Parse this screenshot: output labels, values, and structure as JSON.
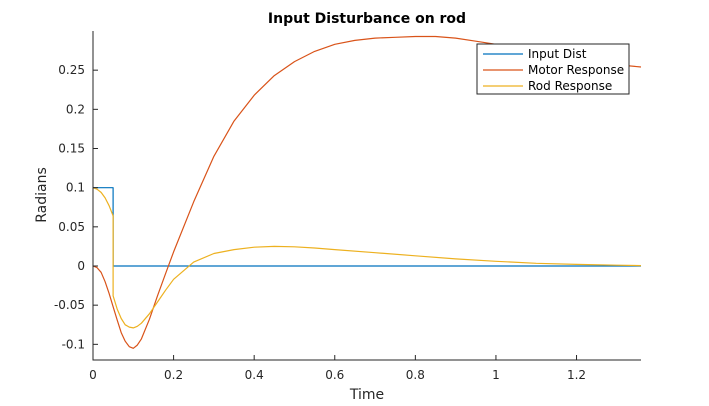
{
  "chart_data": {
    "type": "line",
    "title": "Input Disturbance on rod",
    "xlabel": "Time",
    "ylabel": "Radians",
    "xlim": [
      0,
      1.36
    ],
    "ylim": [
      -0.12,
      0.3
    ],
    "xticks": [
      0,
      0.2,
      0.4,
      0.6,
      0.8,
      1,
      1.2
    ],
    "xtick_labels": [
      "0",
      "0.2",
      "0.4",
      "0.6",
      "0.8",
      "1",
      "1.2"
    ],
    "yticks": [
      -0.1,
      -0.05,
      0,
      0.05,
      0.1,
      0.15,
      0.2,
      0.25
    ],
    "ytick_labels": [
      "-0.1",
      "-0.05",
      "0",
      "0.05",
      "0.1",
      "0.15",
      "0.2",
      "0.25"
    ],
    "grid": false,
    "legend_position": "top-right",
    "series": [
      {
        "name": "Input Dist",
        "color": "#0072bd",
        "points": [
          [
            0,
            0.1
          ],
          [
            0.05,
            0.1
          ],
          [
            0.05,
            0
          ],
          [
            1.36,
            0
          ]
        ]
      },
      {
        "name": "Motor Response",
        "color": "#d95319",
        "points": [
          [
            0,
            0
          ],
          [
            0.01,
            -0.002
          ],
          [
            0.02,
            -0.008
          ],
          [
            0.03,
            -0.02
          ],
          [
            0.04,
            -0.035
          ],
          [
            0.05,
            -0.052
          ],
          [
            0.06,
            -0.069
          ],
          [
            0.07,
            -0.085
          ],
          [
            0.08,
            -0.096
          ],
          [
            0.09,
            -0.103
          ],
          [
            0.1,
            -0.105
          ],
          [
            0.11,
            -0.101
          ],
          [
            0.12,
            -0.093
          ],
          [
            0.14,
            -0.068
          ],
          [
            0.16,
            -0.038
          ],
          [
            0.18,
            -0.01
          ],
          [
            0.2,
            0.018
          ],
          [
            0.25,
            0.082
          ],
          [
            0.3,
            0.14
          ],
          [
            0.35,
            0.185
          ],
          [
            0.4,
            0.218
          ],
          [
            0.45,
            0.243
          ],
          [
            0.5,
            0.261
          ],
          [
            0.55,
            0.274
          ],
          [
            0.6,
            0.283
          ],
          [
            0.65,
            0.288
          ],
          [
            0.7,
            0.291
          ],
          [
            0.75,
            0.292
          ],
          [
            0.8,
            0.293
          ],
          [
            0.85,
            0.293
          ],
          [
            0.9,
            0.291
          ],
          [
            0.95,
            0.287
          ],
          [
            1.0,
            0.283
          ],
          [
            1.05,
            0.279
          ],
          [
            1.1,
            0.274
          ],
          [
            1.15,
            0.269
          ],
          [
            1.2,
            0.264
          ],
          [
            1.25,
            0.26
          ],
          [
            1.3,
            0.257
          ],
          [
            1.36,
            0.254
          ]
        ]
      },
      {
        "name": "Rod Response",
        "color": "#edb120",
        "points": [
          [
            0,
            0.1
          ],
          [
            0.01,
            0.098
          ],
          [
            0.02,
            0.094
          ],
          [
            0.03,
            0.087
          ],
          [
            0.04,
            0.077
          ],
          [
            0.05,
            0.064
          ],
          [
            0.05,
            -0.038
          ],
          [
            0.06,
            -0.055
          ],
          [
            0.07,
            -0.067
          ],
          [
            0.08,
            -0.075
          ],
          [
            0.09,
            -0.078
          ],
          [
            0.1,
            -0.079
          ],
          [
            0.11,
            -0.077
          ],
          [
            0.12,
            -0.073
          ],
          [
            0.14,
            -0.061
          ],
          [
            0.16,
            -0.046
          ],
          [
            0.18,
            -0.031
          ],
          [
            0.2,
            -0.017
          ],
          [
            0.25,
            0.005
          ],
          [
            0.3,
            0.016
          ],
          [
            0.35,
            0.021
          ],
          [
            0.4,
            0.024
          ],
          [
            0.45,
            0.025
          ],
          [
            0.5,
            0.0245
          ],
          [
            0.55,
            0.023
          ],
          [
            0.6,
            0.021
          ],
          [
            0.7,
            0.017
          ],
          [
            0.8,
            0.013
          ],
          [
            0.9,
            0.009
          ],
          [
            1.0,
            0.006
          ],
          [
            1.1,
            0.0035
          ],
          [
            1.2,
            0.002
          ],
          [
            1.3,
            0.001
          ],
          [
            1.36,
            0.0005
          ]
        ]
      }
    ]
  }
}
